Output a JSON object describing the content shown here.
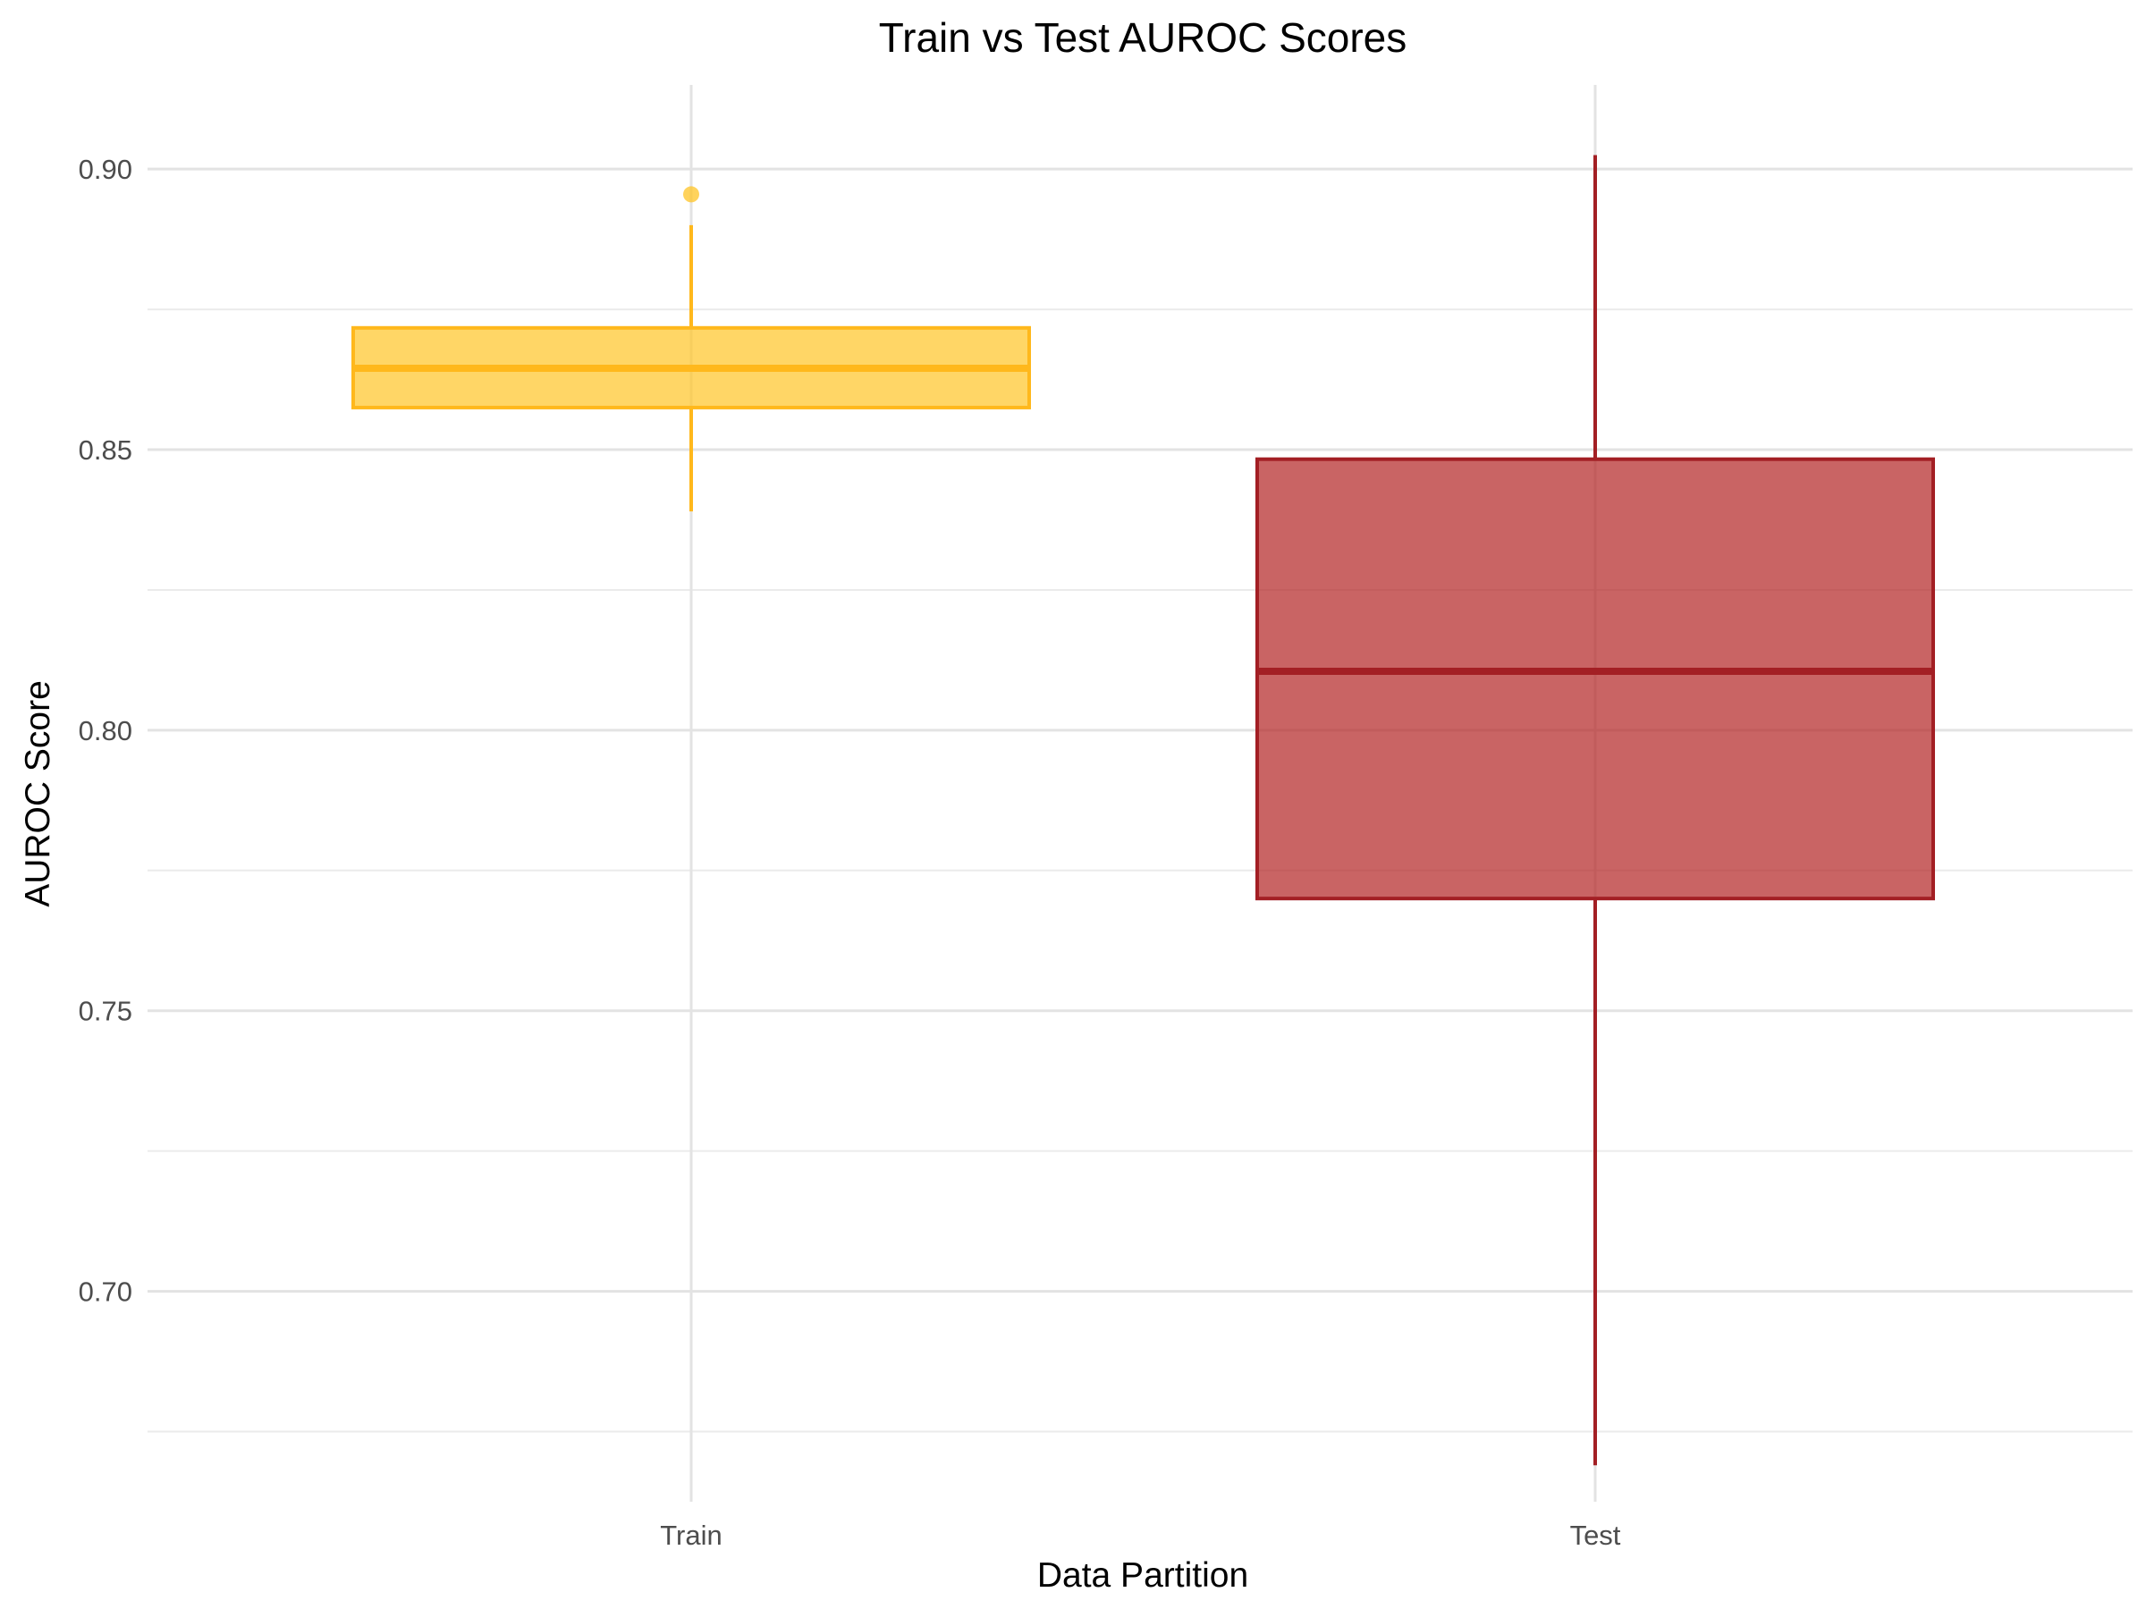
{
  "chart_data": {
    "type": "boxplot",
    "title": "Train vs Test AUROC Scores",
    "xlabel": "Data Partition",
    "ylabel": "AUROC Score",
    "categories": [
      "Train",
      "Test"
    ],
    "ylim": [
      0.675,
      0.9025
    ],
    "yticks": [
      0.7,
      0.75,
      0.8,
      0.85,
      0.9
    ],
    "ytick_labels": [
      "0.70",
      "0.75",
      "0.80",
      "0.85",
      "0.90"
    ],
    "grid": true,
    "boxes": [
      {
        "category": "Train",
        "whisker_low": 0.839,
        "q1": 0.8575,
        "median": 0.8645,
        "q3": 0.8717,
        "whisker_high": 0.89,
        "outliers": [
          0.8955
        ],
        "fill": "#FFC425",
        "stroke": "#FFB81C"
      },
      {
        "category": "Test",
        "whisker_low": 0.669,
        "q1": 0.77,
        "median": 0.8105,
        "q3": 0.8483,
        "whisker_high": 0.9025,
        "outliers": [],
        "fill": "#B22222",
        "stroke": "#A31F24"
      }
    ]
  }
}
